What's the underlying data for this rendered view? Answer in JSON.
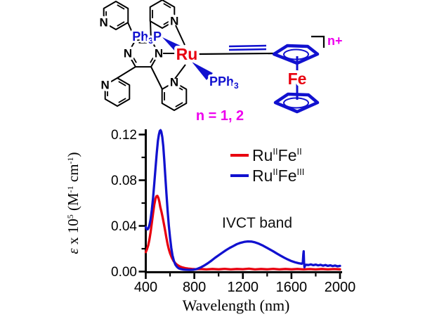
{
  "structure": {
    "labels": {
      "nitrogen": "N",
      "ruthenium": "Ru",
      "iron": "Fe",
      "phosphine_left_parts": [
        "Ph",
        "3",
        "P"
      ],
      "phosphine_right_parts": [
        "PPh",
        "3"
      ],
      "charge": "n+",
      "n_values": "n = 1, 2"
    },
    "colors": {
      "metal_text": "#e8000f",
      "ligand_blue": "#1111cf",
      "charge_text": "#ee00ee",
      "skeleton": "#000000"
    }
  },
  "chart_data": {
    "type": "line",
    "title": "",
    "xlabel": "Wavelength (nm)",
    "ylabel": "ε x 10^5 (M^-1 cm^-1)",
    "ylabel_parts": [
      "ε",
      " x 10",
      "5",
      " (M",
      "-1",
      " cm",
      "-1",
      ")"
    ],
    "xlim": [
      400,
      2000
    ],
    "ylim": [
      0,
      0.125
    ],
    "x_major_ticks": [
      400,
      800,
      1200,
      1600,
      2000
    ],
    "x_minor_ticks": [
      600,
      1000,
      1400,
      1800
    ],
    "y_major_ticks": [
      0,
      0.04,
      0.08,
      0.12
    ],
    "y_minor_ticks": [
      0.02,
      0.06,
      0.1
    ],
    "y_tick_decimals": 2,
    "grid": false,
    "legend_position": "upper-right-inside",
    "annotation": "IVCT band",
    "legend": [
      {
        "parts": [
          "Ru",
          "II",
          "Fe",
          "II"
        ],
        "color": "#e8000f"
      },
      {
        "parts": [
          "Ru",
          "II",
          "Fe",
          "III"
        ],
        "color": "#1111cf"
      }
    ],
    "series": [
      {
        "name": "Ru(II)Fe(II)",
        "color": "#e8000f",
        "points": [
          [
            400,
            0.017
          ],
          [
            410,
            0.0195
          ],
          [
            420,
            0.023
          ],
          [
            430,
            0.028
          ],
          [
            440,
            0.0345
          ],
          [
            450,
            0.0425
          ],
          [
            460,
            0.051
          ],
          [
            470,
            0.0585
          ],
          [
            480,
            0.0638
          ],
          [
            488,
            0.066
          ],
          [
            496,
            0.0663
          ],
          [
            504,
            0.0645
          ],
          [
            512,
            0.061
          ],
          [
            520,
            0.0565
          ],
          [
            530,
            0.052
          ],
          [
            540,
            0.047
          ],
          [
            550,
            0.0415
          ],
          [
            560,
            0.0355
          ],
          [
            570,
            0.0295
          ],
          [
            580,
            0.024
          ],
          [
            590,
            0.0196
          ],
          [
            600,
            0.016
          ],
          [
            615,
            0.012
          ],
          [
            630,
            0.0092
          ],
          [
            645,
            0.0072
          ],
          [
            660,
            0.0058
          ],
          [
            680,
            0.0045
          ],
          [
            700,
            0.0037
          ],
          [
            725,
            0.003
          ],
          [
            750,
            0.0026
          ],
          [
            780,
            0.0023
          ],
          [
            810,
            0.0021
          ],
          [
            850,
            0.0023
          ],
          [
            900,
            0.0019
          ],
          [
            950,
            0.0023
          ],
          [
            1000,
            0.002
          ],
          [
            1050,
            0.0024
          ],
          [
            1100,
            0.0019
          ],
          [
            1150,
            0.0023
          ],
          [
            1200,
            0.0021
          ],
          [
            1250,
            0.0025
          ],
          [
            1300,
            0.0019
          ],
          [
            1350,
            0.0023
          ],
          [
            1400,
            0.002
          ],
          [
            1450,
            0.0024
          ],
          [
            1500,
            0.0019
          ],
          [
            1550,
            0.0023
          ],
          [
            1600,
            0.002
          ],
          [
            1650,
            0.0023
          ],
          [
            1700,
            0.0019
          ],
          [
            1750,
            0.0022
          ],
          [
            1800,
            0.0019
          ],
          [
            1850,
            0.0023
          ],
          [
            1900,
            0.0019
          ],
          [
            1950,
            0.0022
          ],
          [
            2000,
            0.002
          ]
        ]
      },
      {
        "name": "Ru(II)Fe(III)",
        "color": "#1111cf",
        "points": [
          [
            400,
            0.039
          ],
          [
            408,
            0.0372
          ],
          [
            416,
            0.037
          ],
          [
            424,
            0.0385
          ],
          [
            432,
            0.0415
          ],
          [
            440,
            0.046
          ],
          [
            450,
            0.054
          ],
          [
            460,
            0.0645
          ],
          [
            470,
            0.077
          ],
          [
            480,
            0.09
          ],
          [
            490,
            0.1035
          ],
          [
            500,
            0.1145
          ],
          [
            508,
            0.12
          ],
          [
            516,
            0.1232
          ],
          [
            522,
            0.1238
          ],
          [
            528,
            0.1225
          ],
          [
            536,
            0.118
          ],
          [
            544,
            0.11
          ],
          [
            552,
            0.098
          ],
          [
            560,
            0.0845
          ],
          [
            570,
            0.0685
          ],
          [
            580,
            0.0535
          ],
          [
            590,
            0.0405
          ],
          [
            600,
            0.0295
          ],
          [
            610,
            0.0208
          ],
          [
            620,
            0.0143
          ],
          [
            632,
            0.0093
          ],
          [
            644,
            0.006
          ],
          [
            658,
            0.004
          ],
          [
            672,
            0.0028
          ],
          [
            690,
            0.0022
          ],
          [
            710,
            0.0018
          ],
          [
            730,
            0.0016
          ],
          [
            760,
            0.0015
          ],
          [
            790,
            0.0016
          ],
          [
            820,
            0.0022
          ],
          [
            850,
            0.0035
          ],
          [
            880,
            0.0052
          ],
          [
            910,
            0.0072
          ],
          [
            940,
            0.0095
          ],
          [
            970,
            0.012
          ],
          [
            1000,
            0.0143
          ],
          [
            1030,
            0.0165
          ],
          [
            1060,
            0.0187
          ],
          [
            1090,
            0.0206
          ],
          [
            1120,
            0.0223
          ],
          [
            1150,
            0.024
          ],
          [
            1180,
            0.0252
          ],
          [
            1210,
            0.026
          ],
          [
            1240,
            0.0264
          ],
          [
            1270,
            0.0263
          ],
          [
            1300,
            0.0256
          ],
          [
            1330,
            0.0245
          ],
          [
            1360,
            0.023
          ],
          [
            1390,
            0.0213
          ],
          [
            1420,
            0.0195
          ],
          [
            1450,
            0.0177
          ],
          [
            1480,
            0.0158
          ],
          [
            1510,
            0.014
          ],
          [
            1540,
            0.0122
          ],
          [
            1570,
            0.0106
          ],
          [
            1600,
            0.0092
          ],
          [
            1630,
            0.0081
          ],
          [
            1660,
            0.0073
          ],
          [
            1685,
            0.0068
          ],
          [
            1694,
            0.008
          ],
          [
            1698,
            0.015
          ],
          [
            1701,
            0.0178
          ],
          [
            1704,
            0.008
          ],
          [
            1707,
            0.0038
          ],
          [
            1712,
            0.0052
          ],
          [
            1720,
            0.006
          ],
          [
            1740,
            0.0057
          ],
          [
            1760,
            0.0063
          ],
          [
            1780,
            0.0056
          ],
          [
            1800,
            0.0061
          ],
          [
            1820,
            0.0054
          ],
          [
            1840,
            0.0059
          ],
          [
            1860,
            0.0052
          ],
          [
            1880,
            0.0057
          ],
          [
            1900,
            0.005
          ],
          [
            1920,
            0.0055
          ],
          [
            1940,
            0.0048
          ],
          [
            1960,
            0.0053
          ],
          [
            1980,
            0.0046
          ],
          [
            2000,
            0.005
          ]
        ]
      }
    ]
  }
}
